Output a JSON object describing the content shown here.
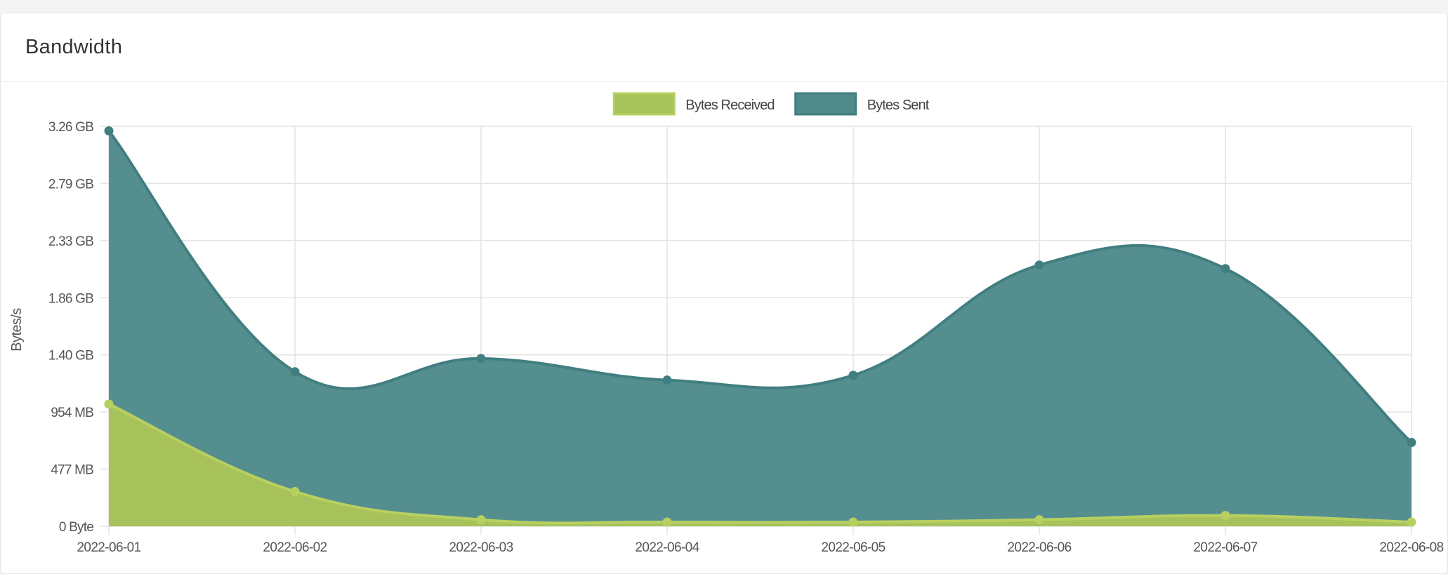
{
  "panel": {
    "title": "Bandwidth"
  },
  "chart_data": {
    "type": "area",
    "title": "",
    "xlabel": "",
    "ylabel": "Bytes/s",
    "x": [
      "2022-06-01",
      "2022-06-02",
      "2022-06-03",
      "2022-06-04",
      "2022-06-05",
      "2022-06-06",
      "2022-06-07",
      "2022-06-08"
    ],
    "y_ticks": [
      "0 Byte",
      "477 MB",
      "954 MB",
      "1.40 GB",
      "1.86 GB",
      "2.33 GB",
      "2.79 GB",
      "3.26 GB"
    ],
    "y_unit": "MB",
    "ylim": [
      0,
      3338
    ],
    "stacked": false,
    "grid": true,
    "legend_position": "top-center",
    "series": [
      {
        "name": "Bytes Received",
        "color": "#a7c25a",
        "line_color": "#b8d060",
        "values": [
          1020,
          290,
          55,
          35,
          35,
          55,
          90,
          35
        ]
      },
      {
        "name": "Bytes Sent",
        "color": "#4f8a8b",
        "line_color": "#417e80",
        "values": [
          3300,
          1290,
          1400,
          1220,
          1260,
          2180,
          2150,
          700
        ]
      }
    ]
  }
}
